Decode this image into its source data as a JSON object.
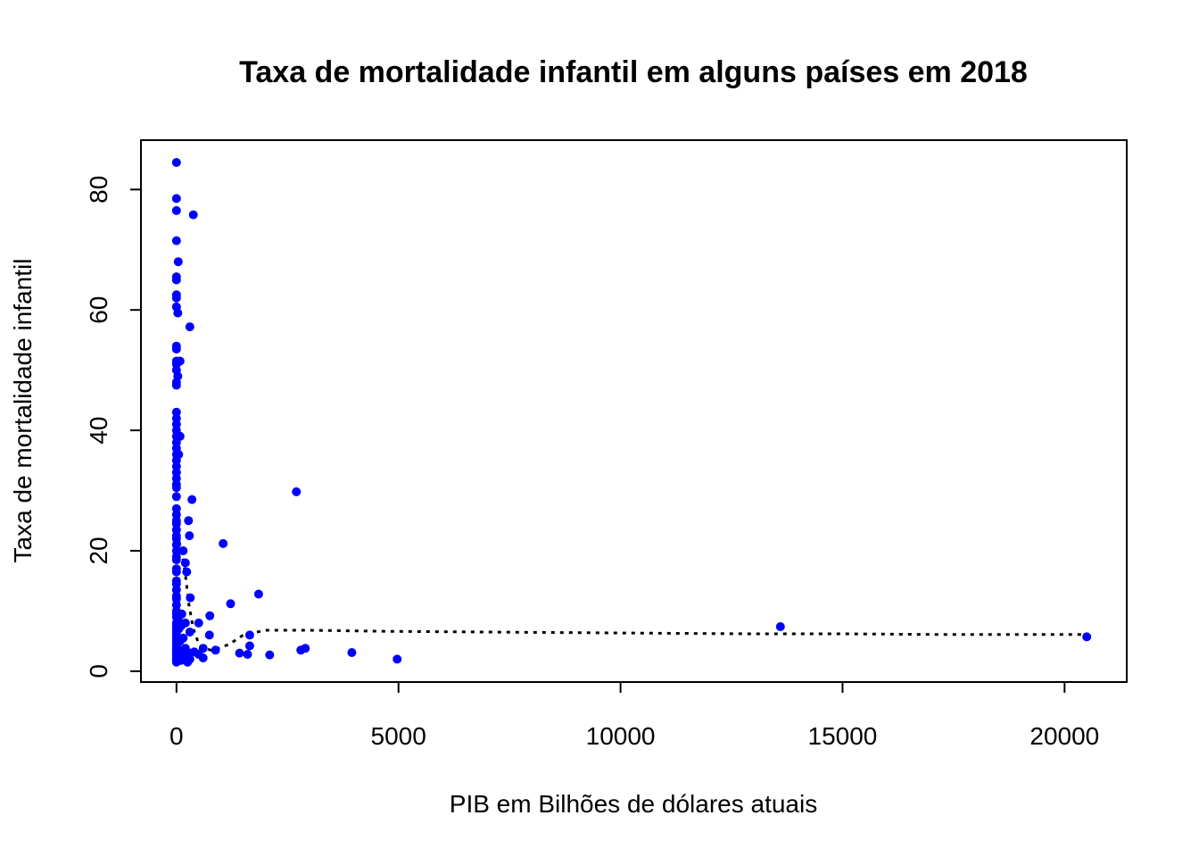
{
  "chart_data": {
    "type": "scatter",
    "title": "Taxa de mortalidade infantil em alguns países em 2018",
    "xlabel": "PIB em Bilhões de dólares atuais",
    "ylabel": "Taxa de mortalidade infantil",
    "xlim": [
      -800,
      21400
    ],
    "ylim": [
      -1.8,
      88.2
    ],
    "x_ticks": [
      0,
      5000,
      10000,
      15000,
      20000
    ],
    "x_tick_labels": [
      "0",
      "5000",
      "10000",
      "15000",
      "20000"
    ],
    "y_ticks": [
      0,
      20,
      40,
      60,
      80
    ],
    "y_tick_labels": [
      "0",
      "20",
      "40",
      "60",
      "80"
    ],
    "grid": false,
    "point_color": "#0000FF",
    "trend_color": "#000000",
    "points": [
      [
        0,
        84.5
      ],
      [
        0,
        78.5
      ],
      [
        0,
        76.5
      ],
      [
        380,
        75.8
      ],
      [
        0,
        71.5
      ],
      [
        40,
        68
      ],
      [
        0,
        65.5
      ],
      [
        0,
        65
      ],
      [
        0,
        62.5
      ],
      [
        0,
        62
      ],
      [
        0,
        60.5
      ],
      [
        30,
        59.5
      ],
      [
        300,
        57.2
      ],
      [
        0,
        54
      ],
      [
        0,
        53.5
      ],
      [
        0,
        51.5
      ],
      [
        0,
        51
      ],
      [
        80,
        51.5
      ],
      [
        0,
        50
      ],
      [
        30,
        49
      ],
      [
        0,
        48
      ],
      [
        0,
        47.5
      ],
      [
        0,
        43
      ],
      [
        0,
        42
      ],
      [
        0,
        41
      ],
      [
        0,
        40
      ],
      [
        0,
        39
      ],
      [
        80,
        39
      ],
      [
        0,
        38
      ],
      [
        0,
        37
      ],
      [
        0,
        36
      ],
      [
        50,
        36
      ],
      [
        0,
        35
      ],
      [
        0,
        34
      ],
      [
        0,
        33
      ],
      [
        0,
        32
      ],
      [
        0,
        31
      ],
      [
        0,
        30.5
      ],
      [
        0,
        29
      ],
      [
        2700,
        29.8
      ],
      [
        350,
        28.5
      ],
      [
        0,
        27
      ],
      [
        0,
        26
      ],
      [
        0,
        25
      ],
      [
        0,
        24.5
      ],
      [
        270,
        25
      ],
      [
        0,
        23.5
      ],
      [
        0,
        22.5
      ],
      [
        0,
        22
      ],
      [
        290,
        22.5
      ],
      [
        1050,
        21.2
      ],
      [
        0,
        21
      ],
      [
        0,
        20
      ],
      [
        150,
        20
      ],
      [
        0,
        19
      ],
      [
        0,
        18.5
      ],
      [
        200,
        18
      ],
      [
        0,
        17
      ],
      [
        0,
        16.5
      ],
      [
        230,
        16.5
      ],
      [
        0,
        15
      ],
      [
        0,
        14.5
      ],
      [
        0,
        13.5
      ],
      [
        0,
        12.5
      ],
      [
        310,
        12.2
      ],
      [
        1850,
        12.8
      ],
      [
        0,
        12
      ],
      [
        0,
        11
      ],
      [
        1220,
        11.2
      ],
      [
        0,
        10
      ],
      [
        0,
        9.5
      ],
      [
        120,
        9.5
      ],
      [
        750,
        9.2
      ],
      [
        0,
        9
      ],
      [
        40,
        8.5
      ],
      [
        0,
        8
      ],
      [
        200,
        8
      ],
      [
        500,
        8
      ],
      [
        0,
        7.5
      ],
      [
        100,
        7.5
      ],
      [
        13600,
        7.4
      ],
      [
        0,
        7
      ],
      [
        50,
        7
      ],
      [
        0,
        6.5
      ],
      [
        300,
        6.5
      ],
      [
        0,
        6
      ],
      [
        740,
        6
      ],
      [
        1650,
        6
      ],
      [
        0,
        5.5
      ],
      [
        150,
        5.5
      ],
      [
        20500,
        5.7
      ],
      [
        0,
        5
      ],
      [
        80,
        5
      ],
      [
        0,
        4.5
      ],
      [
        0,
        4
      ],
      [
        1650,
        4.2
      ],
      [
        0,
        3.8
      ],
      [
        200,
        3.8
      ],
      [
        600,
        3.8
      ],
      [
        0,
        3.5
      ],
      [
        100,
        3.5
      ],
      [
        880,
        3.5
      ],
      [
        2800,
        3.5
      ],
      [
        2900,
        3.8
      ],
      [
        0,
        3.2
      ],
      [
        400,
        3.2
      ],
      [
        0,
        3
      ],
      [
        300,
        3
      ],
      [
        1420,
        3
      ],
      [
        3950,
        3.1
      ],
      [
        0,
        2.8
      ],
      [
        100,
        2.8
      ],
      [
        500,
        2.8
      ],
      [
        1600,
        2.8
      ],
      [
        2100,
        2.7
      ],
      [
        0,
        2.5
      ],
      [
        200,
        2.5
      ],
      [
        0,
        2.2
      ],
      [
        600,
        2.2
      ],
      [
        0,
        2
      ],
      [
        300,
        2
      ],
      [
        4970,
        2
      ],
      [
        0,
        1.8
      ],
      [
        100,
        1.8
      ],
      [
        0,
        1.5
      ],
      [
        250,
        1.5
      ]
    ],
    "trend_line": [
      [
        0,
        23
      ],
      [
        120,
        20
      ],
      [
        200,
        16
      ],
      [
        280,
        11
      ],
      [
        380,
        7
      ],
      [
        520,
        4.2
      ],
      [
        800,
        3.4
      ],
      [
        1200,
        4.5
      ],
      [
        1500,
        6
      ],
      [
        2000,
        6.8
      ],
      [
        3000,
        6.8
      ],
      [
        4000,
        6.7
      ],
      [
        5000,
        6.6
      ],
      [
        7000,
        6.5
      ],
      [
        9000,
        6.4
      ],
      [
        11000,
        6.3
      ],
      [
        13000,
        6.2
      ],
      [
        15000,
        6.2
      ],
      [
        17000,
        6.1
      ],
      [
        19000,
        6.1
      ],
      [
        20500,
        6.1
      ]
    ]
  }
}
